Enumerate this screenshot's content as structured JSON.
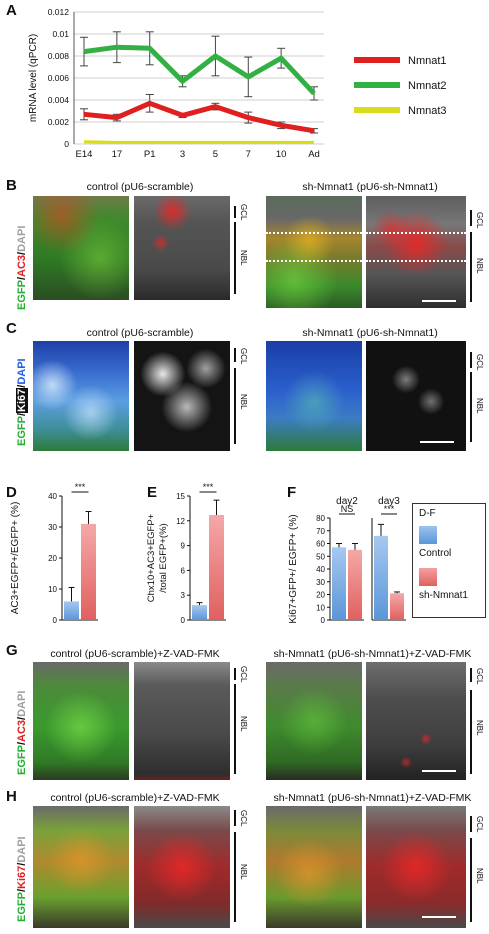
{
  "panels": {
    "A": {
      "letter": "A"
    },
    "B": {
      "letter": "B",
      "left_title": "control (pU6-scramble)",
      "right_title": "sh-Nmnat1 (pU6-sh-Nmnat1)",
      "stain": [
        "EGFP",
        "/",
        "AC3",
        "/",
        "DAPI"
      ]
    },
    "C": {
      "letter": "C",
      "left_title": "control (pU6-scramble)",
      "right_title": "sh-Nmnat1 (pU6-sh-Nmnat1)",
      "stain": [
        "EGFP",
        "/",
        "Ki67",
        "/",
        "DAPI"
      ]
    },
    "D": {
      "letter": "D",
      "ylabel": "AC3+EGFP+/EGFP+ (%)",
      "sig": "***"
    },
    "E": {
      "letter": "E",
      "ylabel": "Chx10+AC3+EGFP+ /total EGFP+(%)",
      "sig": "***"
    },
    "F": {
      "letter": "F",
      "ylabel": "Ki67+GFP+/ EGFP+ (%)",
      "day2": "day2",
      "day3": "day3",
      "ns": "NS",
      "sig": "***"
    },
    "legend": {
      "title": "D-F",
      "control": "Control",
      "sh": "sh-Nmnat1"
    },
    "G": {
      "letter": "G",
      "left_title": "control (pU6-scramble)+Z-VAD-FMK",
      "right_title": "sh-Nmnat1 (pU6-sh-Nmnat1)+Z-VAD-FMK",
      "stain": [
        "EGFP",
        "/",
        "AC3",
        "/",
        "DAPI"
      ]
    },
    "H": {
      "letter": "H",
      "left_title": "control (pU6-scramble)+Z-VAD-FMK",
      "right_title": "sh-Nmnat1 (pU6-sh-Nmnat1)+Z-VAD-FMK",
      "stain": [
        "EGFP",
        "/",
        "Ki67",
        "/",
        "DAPI"
      ]
    },
    "layers": {
      "gcl": "GCL",
      "nbl": "NBL"
    }
  },
  "colors": {
    "nmnat1": "#e02020",
    "nmnat2": "#33b044",
    "nmnat3": "#d8dc1a",
    "control": "#5b96d8",
    "sh": "#e06060",
    "egfp": "#22b030",
    "red": "#e02020",
    "ki67": "#ffffff",
    "dapi": "#9a9a9a",
    "dapi_blue": "#1f5fe0"
  },
  "chart_data": [
    {
      "type": "line",
      "ylabel": "mRNA level (qPCR)",
      "categories": [
        "E14",
        "17",
        "P1",
        "3",
        "5",
        "7",
        "10",
        "Ad"
      ],
      "y_ticks": [
        "0",
        "0.002",
        "0.004",
        "0.006",
        "0.008",
        "0.01",
        "0.012"
      ],
      "ylim": [
        0,
        0.012
      ],
      "grid": true,
      "legend_position": "right",
      "series": [
        {
          "name": "Nmnat1",
          "values": [
            0.0027,
            0.0024,
            0.0037,
            0.0026,
            0.0034,
            0.0024,
            0.0017,
            0.0012
          ],
          "err": [
            0.0005,
            0.0003,
            0.0008,
            0.0002,
            0.0003,
            0.0005,
            0.0003,
            0.0002
          ]
        },
        {
          "name": "Nmnat2",
          "values": [
            0.0084,
            0.0088,
            0.0087,
            0.0057,
            0.008,
            0.0061,
            0.0078,
            0.0046
          ],
          "err": [
            0.0013,
            0.0014,
            0.0015,
            0.0005,
            0.0018,
            0.0018,
            0.0009,
            0.0006
          ]
        },
        {
          "name": "Nmnat3",
          "values": [
            0.0002,
            0.00015,
            0.00015,
            0.00015,
            0.00015,
            0.00015,
            0.00015,
            0.00015
          ],
          "err": [
            0,
            0,
            0,
            0,
            0,
            0,
            0,
            0
          ]
        }
      ]
    },
    {
      "type": "bar",
      "panel": "D",
      "categories": [
        "Control",
        "sh-Nmnat1"
      ],
      "values": [
        6,
        31
      ],
      "err": [
        4.5,
        4
      ],
      "y_ticks": [
        "0",
        "10",
        "20",
        "30",
        "40"
      ],
      "ylim": [
        0,
        40
      ]
    },
    {
      "type": "bar",
      "panel": "E",
      "categories": [
        "Control",
        "sh-Nmnat1"
      ],
      "values": [
        1.8,
        12.7
      ],
      "err": [
        0.3,
        1.8
      ],
      "y_ticks": [
        "0",
        "3",
        "6",
        "9",
        "12",
        "15"
      ],
      "ylim": [
        0,
        15
      ]
    },
    {
      "type": "bar",
      "panel": "F-day2",
      "categories": [
        "Control",
        "sh-Nmnat1"
      ],
      "values": [
        57,
        55
      ],
      "err": [
        3,
        5
      ],
      "y_ticks": [
        "0",
        "10",
        "20",
        "30",
        "40",
        "50",
        "60",
        "70",
        "80"
      ],
      "ylim": [
        0,
        80
      ]
    },
    {
      "type": "bar",
      "panel": "F-day3",
      "categories": [
        "Control",
        "sh-Nmnat1"
      ],
      "values": [
        66,
        21
      ],
      "err": [
        9,
        1
      ],
      "ylim": [
        0,
        80
      ]
    }
  ]
}
